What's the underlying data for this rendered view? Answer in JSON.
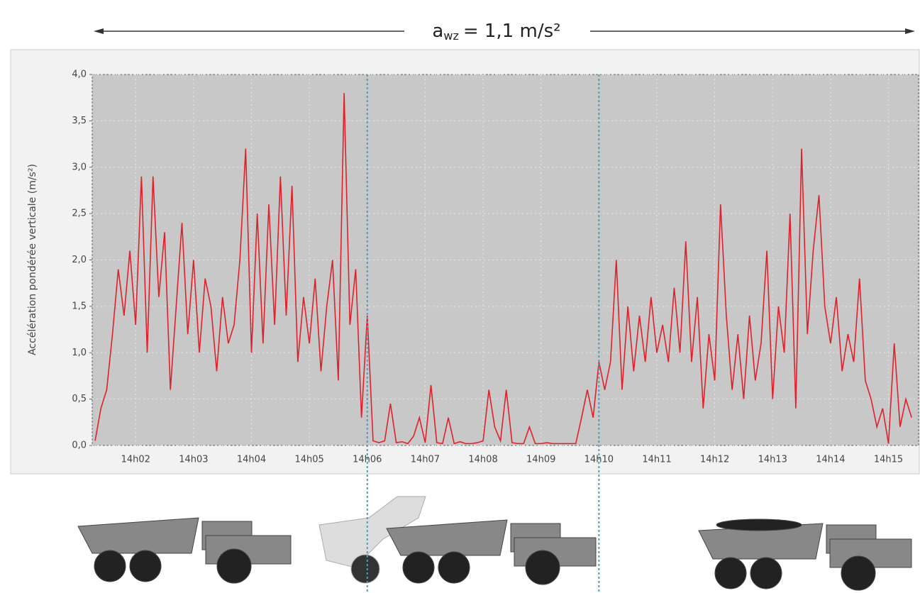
{
  "chart_data": {
    "type": "line",
    "annotation": {
      "symbol": "a",
      "subscript": "wz",
      "text": "= 1,1 m/s²"
    },
    "y_label": "Accélération pondérée verticale (m/s²)",
    "xlim": [
      1.25,
      15.52
    ],
    "ylim": [
      0,
      4
    ],
    "xticks": [
      {
        "value": 2,
        "label": "14h02"
      },
      {
        "value": 3,
        "label": "14h03"
      },
      {
        "value": 4,
        "label": "14h04"
      },
      {
        "value": 5,
        "label": "14h05"
      },
      {
        "value": 6,
        "label": "14h06"
      },
      {
        "value": 7,
        "label": "14h07"
      },
      {
        "value": 8,
        "label": "14h08"
      },
      {
        "value": 9,
        "label": "14h09"
      },
      {
        "value": 10,
        "label": "14h10"
      },
      {
        "value": 11,
        "label": "14h11"
      },
      {
        "value": 12,
        "label": "14h12"
      },
      {
        "value": 13,
        "label": "14h13"
      },
      {
        "value": 14,
        "label": "14h14"
      },
      {
        "value": 15,
        "label": "14h15"
      }
    ],
    "yticks": [
      {
        "value": 0,
        "label": "0,0"
      },
      {
        "value": 0.5,
        "label": "0,5"
      },
      {
        "value": 1,
        "label": "1,0"
      },
      {
        "value": 1.5,
        "label": "1,5"
      },
      {
        "value": 2,
        "label": "2,0"
      },
      {
        "value": 2.5,
        "label": "2,5"
      },
      {
        "value": 3,
        "label": "3,0"
      },
      {
        "value": 3.5,
        "label": "3,5"
      },
      {
        "value": 4,
        "label": "4,0"
      }
    ],
    "grid": true,
    "vlines": [
      6,
      10
    ],
    "vline_color": "#3aa0e0",
    "x": [
      1.3,
      1.4,
      1.5,
      1.6,
      1.7,
      1.8,
      1.9,
      2.0,
      2.1,
      2.2,
      2.3,
      2.4,
      2.5,
      2.6,
      2.7,
      2.8,
      2.9,
      3.0,
      3.1,
      3.2,
      3.3,
      3.4,
      3.5,
      3.6,
      3.7,
      3.8,
      3.9,
      4.0,
      4.1,
      4.2,
      4.3,
      4.4,
      4.5,
      4.6,
      4.7,
      4.8,
      4.9,
      5.0,
      5.1,
      5.2,
      5.3,
      5.4,
      5.5,
      5.6,
      5.7,
      5.8,
      5.9,
      6.0,
      6.1,
      6.2,
      6.3,
      6.4,
      6.5,
      6.6,
      6.7,
      6.8,
      6.9,
      7.0,
      7.1,
      7.2,
      7.3,
      7.4,
      7.5,
      7.6,
      7.7,
      7.8,
      7.9,
      8.0,
      8.1,
      8.2,
      8.3,
      8.4,
      8.5,
      8.6,
      8.7,
      8.8,
      8.9,
      9.0,
      9.1,
      9.2,
      9.3,
      9.4,
      9.5,
      9.6,
      9.7,
      9.8,
      9.9,
      10.0,
      10.1,
      10.2,
      10.3,
      10.4,
      10.5,
      10.6,
      10.7,
      10.8,
      10.9,
      11.0,
      11.1,
      11.2,
      11.3,
      11.4,
      11.5,
      11.6,
      11.7,
      11.8,
      11.9,
      12.0,
      12.1,
      12.2,
      12.3,
      12.4,
      12.5,
      12.6,
      12.7,
      12.8,
      12.9,
      13.0,
      13.1,
      13.2,
      13.3,
      13.4,
      13.5,
      13.6,
      13.7,
      13.8,
      13.9,
      14.0,
      14.1,
      14.2,
      14.3,
      14.4,
      14.5,
      14.6,
      14.7,
      14.8,
      14.9,
      15.0,
      15.1,
      15.2,
      15.3,
      15.4
    ],
    "series": [
      {
        "color": "#e0202a",
        "values": [
          0.05,
          0.4,
          0.6,
          1.2,
          1.9,
          1.4,
          2.1,
          1.3,
          2.9,
          1.0,
          2.9,
          1.6,
          2.3,
          0.6,
          1.5,
          2.4,
          1.2,
          2.0,
          1.0,
          1.8,
          1.5,
          0.8,
          1.6,
          1.1,
          1.3,
          2.0,
          3.2,
          1.0,
          2.5,
          1.1,
          2.6,
          1.3,
          2.9,
          1.4,
          2.8,
          0.9,
          1.6,
          1.1,
          1.8,
          0.8,
          1.5,
          2.0,
          0.7,
          3.8,
          1.3,
          1.9,
          0.3,
          1.4,
          0.05,
          0.03,
          0.05,
          0.45,
          0.03,
          0.04,
          0.02,
          0.1,
          0.3,
          0.03,
          0.65,
          0.03,
          0.02,
          0.3,
          0.02,
          0.04,
          0.02,
          0.02,
          0.03,
          0.05,
          0.6,
          0.2,
          0.05,
          0.6,
          0.03,
          0.02,
          0.02,
          0.2,
          0.02,
          0.02,
          0.03,
          0.02,
          0.02,
          0.02,
          0.02,
          0.02,
          0.3,
          0.6,
          0.3,
          0.9,
          0.6,
          0.9,
          2.0,
          0.6,
          1.5,
          0.8,
          1.4,
          0.9,
          1.6,
          1.0,
          1.3,
          0.9,
          1.7,
          1.0,
          2.2,
          0.9,
          1.6,
          0.4,
          1.2,
          0.7,
          2.6,
          1.4,
          0.6,
          1.2,
          0.5,
          1.4,
          0.7,
          1.1,
          2.1,
          0.5,
          1.5,
          1.0,
          2.5,
          0.4,
          3.2,
          1.2,
          2.1,
          2.7,
          1.5,
          1.1,
          1.6,
          0.8,
          1.2,
          0.9,
          1.8,
          0.7,
          0.5,
          0.2,
          0.4,
          0.02,
          1.1,
          0.2,
          0.5,
          0.3
        ]
      }
    ]
  }
}
